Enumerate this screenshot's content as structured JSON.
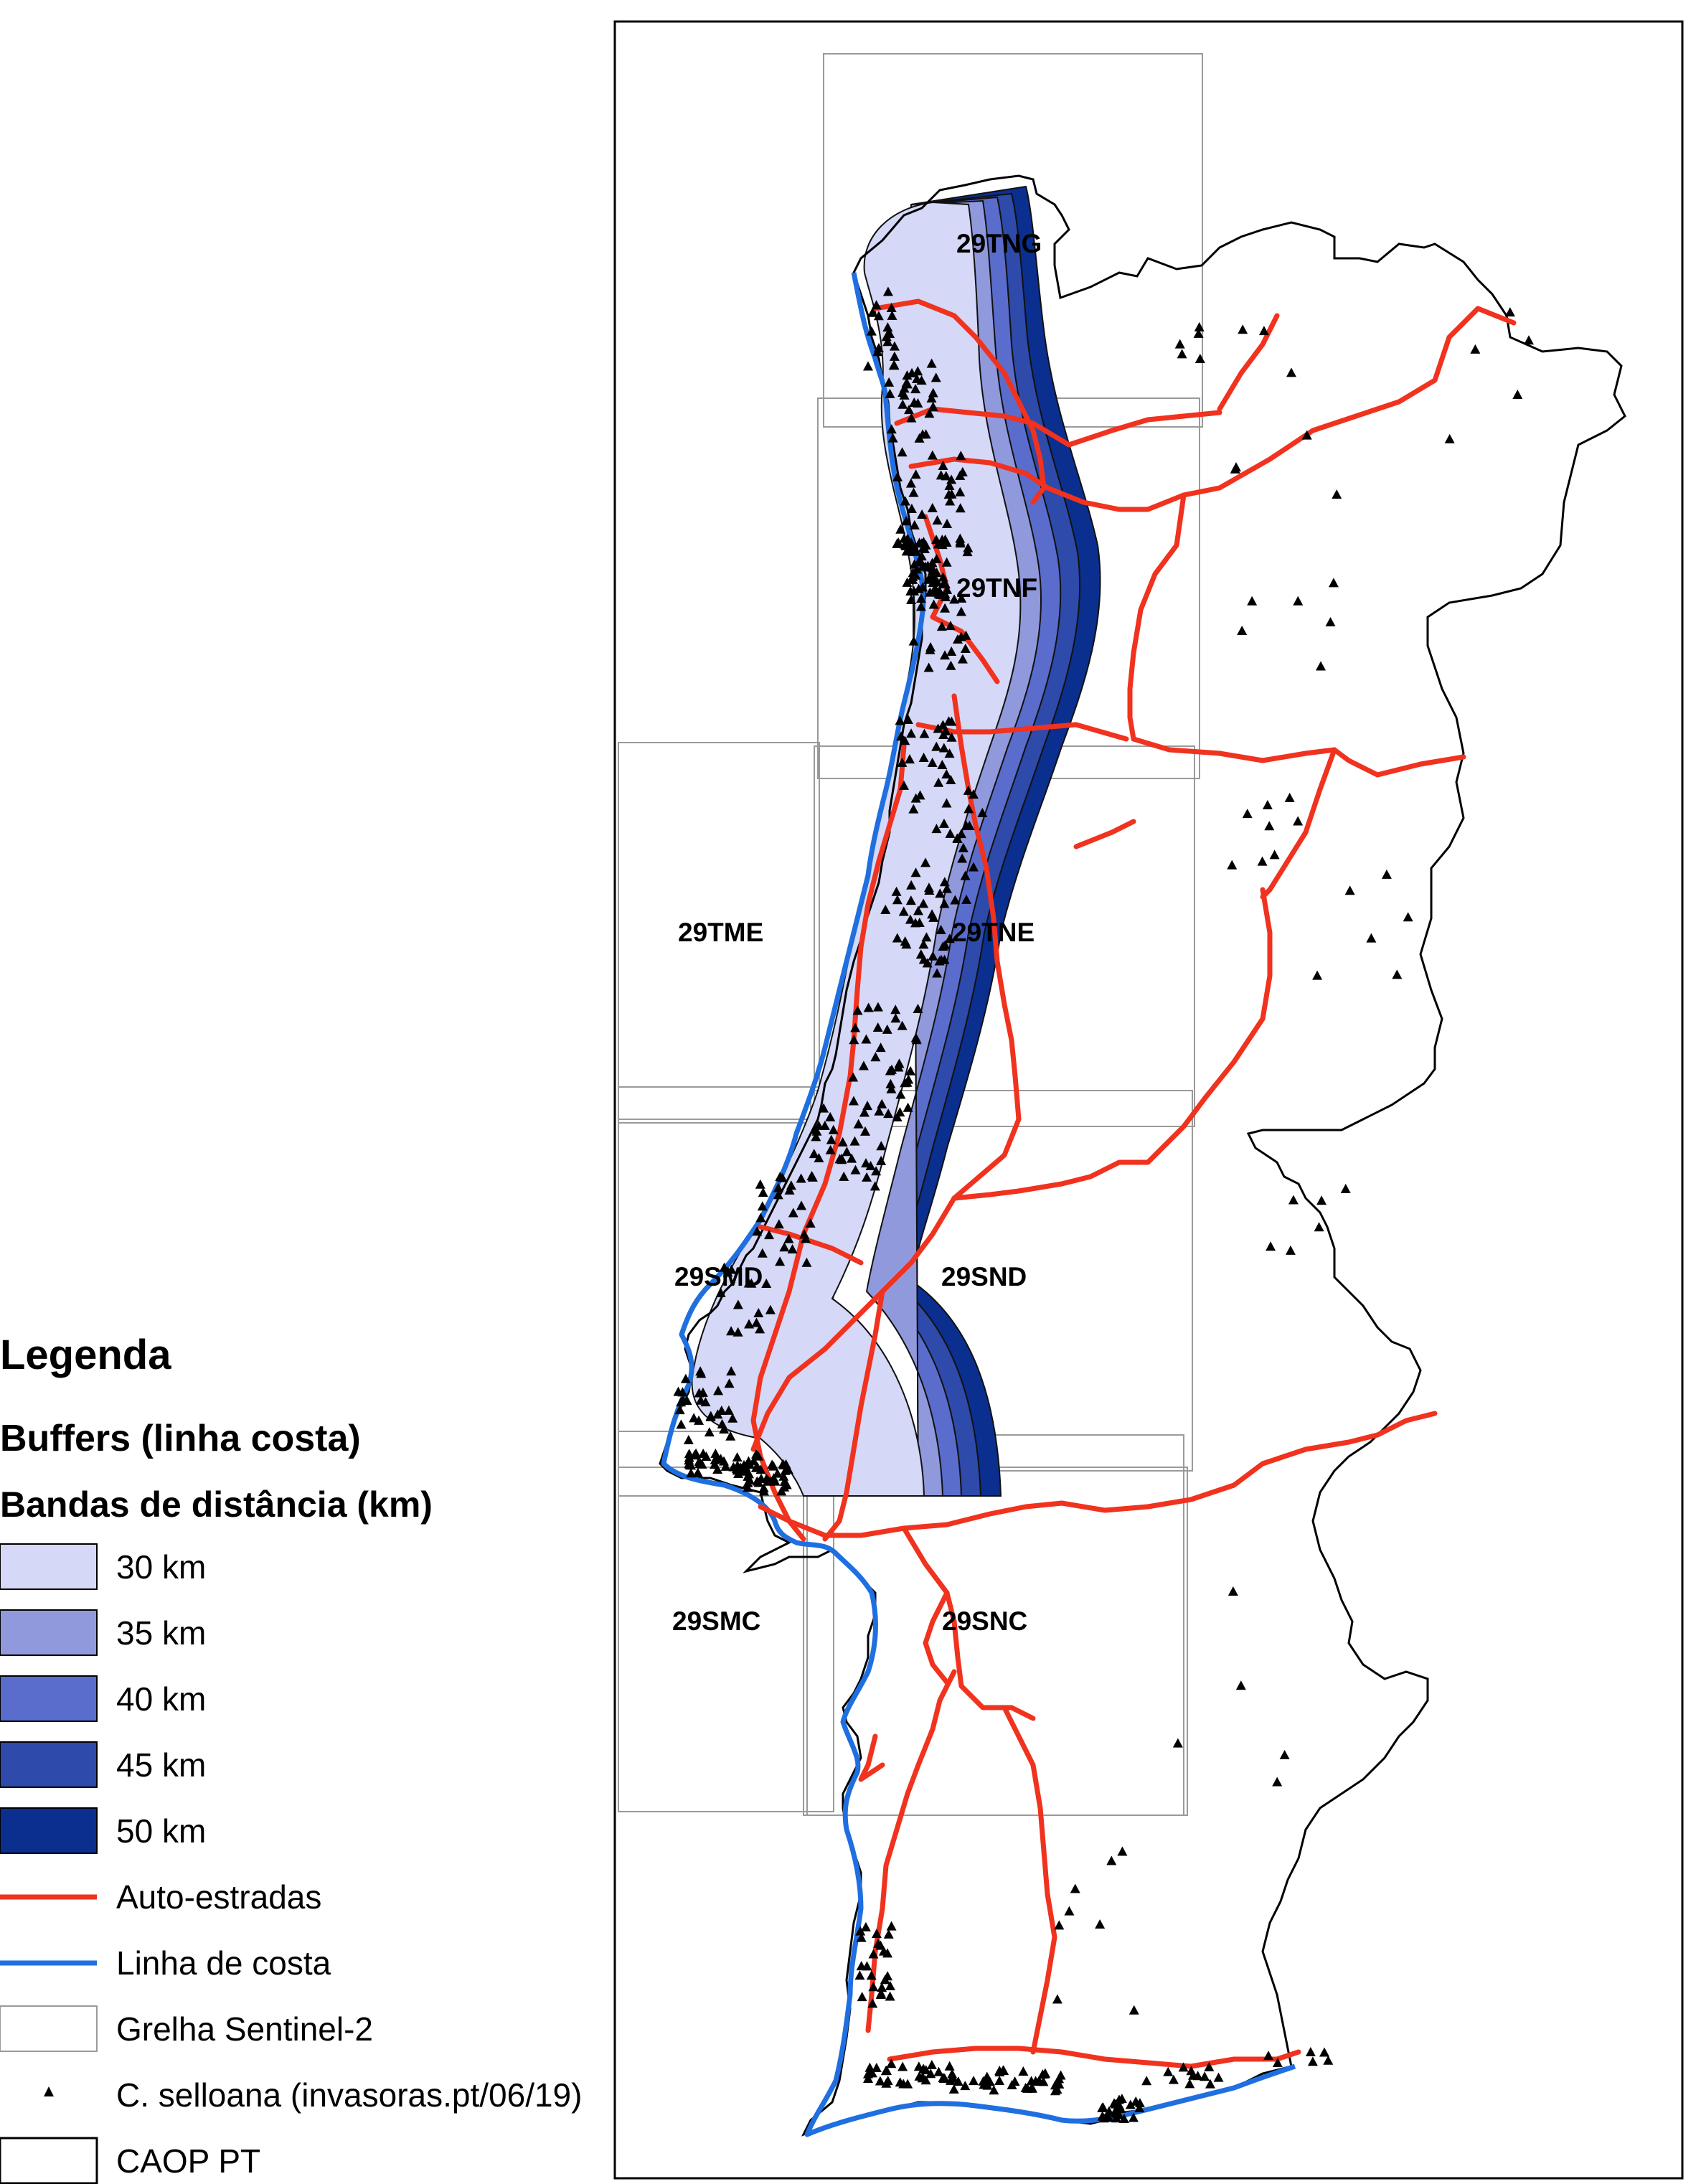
{
  "legend": {
    "title": "Legenda",
    "subtitle": "Buffers (linha costa)",
    "bands_title": "Bandas de distância (km)",
    "items": [
      {
        "label": "30 km",
        "color": "#d5d8f6",
        "kind": "fill"
      },
      {
        "label": "35 km",
        "color": "#9199dd",
        "kind": "fill"
      },
      {
        "label": "40 km",
        "color": "#5a6dcd",
        "kind": "fill"
      },
      {
        "label": "45 km",
        "color": "#2e4aaa",
        "kind": "fill"
      },
      {
        "label": "50 km",
        "color": "#0a2f8f",
        "kind": "fill"
      },
      {
        "label": "Auto-estradas",
        "color": "#f0321e",
        "kind": "line"
      },
      {
        "label": "Linha de costa",
        "color": "#1f6fe0",
        "kind": "line"
      },
      {
        "label": "Grelha Sentinel-2",
        "color": "#9a9a9a",
        "kind": "box"
      },
      {
        "label": "C. selloana (invasoras.pt/06/19)",
        "color": "#000000",
        "kind": "point"
      },
      {
        "label": "CAOP PT",
        "color": "#000000",
        "kind": "box"
      }
    ]
  },
  "tiles": [
    "29TNG",
    "29TNF",
    "29TME",
    "29TNE",
    "29SMD",
    "29SND",
    "29SMC",
    "29SNC"
  ]
}
